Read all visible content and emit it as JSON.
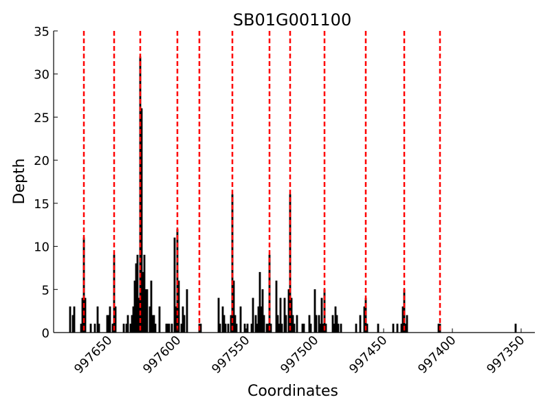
{
  "chart_data": {
    "type": "bar",
    "title": "SB01G001100",
    "xlabel": "Coordinates",
    "ylabel": "Depth",
    "ylim": [
      0,
      35
    ],
    "xlim": [
      997690,
      997340
    ],
    "x_reversed": true,
    "y_ticks": [
      "0",
      "5",
      "10",
      "15",
      "20",
      "25",
      "30",
      "35"
    ],
    "y_tick_values": [
      0,
      5,
      10,
      15,
      20,
      25,
      30,
      35
    ],
    "x_ticks": [
      "997650",
      "997600",
      "997550",
      "997500",
      "997450",
      "997400",
      "997350"
    ],
    "x_tick_values": [
      997650,
      997600,
      997550,
      997500,
      997450,
      997400,
      997350
    ],
    "bar_color": "#000000",
    "line_color": "#ff0000",
    "grid": false,
    "vlines": [
      997668,
      997646,
      997627,
      997600,
      997584,
      997560,
      997533,
      997518,
      997493,
      997463,
      997435,
      997409
    ],
    "bars": [
      {
        "x": 997678,
        "y": 3
      },
      {
        "x": 997676,
        "y": 2
      },
      {
        "x": 997675,
        "y": 3
      },
      {
        "x": 997670,
        "y": 1
      },
      {
        "x": 997669,
        "y": 4
      },
      {
        "x": 997668,
        "y": 11
      },
      {
        "x": 997667,
        "y": 4
      },
      {
        "x": 997663,
        "y": 1
      },
      {
        "x": 997660,
        "y": 1
      },
      {
        "x": 997658,
        "y": 3
      },
      {
        "x": 997657,
        "y": 1
      },
      {
        "x": 997651,
        "y": 2
      },
      {
        "x": 997650,
        "y": 2
      },
      {
        "x": 997649,
        "y": 3
      },
      {
        "x": 997647,
        "y": 1
      },
      {
        "x": 997646,
        "y": 9
      },
      {
        "x": 997645,
        "y": 3
      },
      {
        "x": 997639,
        "y": 1
      },
      {
        "x": 997637,
        "y": 1
      },
      {
        "x": 997636,
        "y": 2
      },
      {
        "x": 997634,
        "y": 1
      },
      {
        "x": 997633,
        "y": 2
      },
      {
        "x": 997632,
        "y": 3
      },
      {
        "x": 997631,
        "y": 6
      },
      {
        "x": 997630,
        "y": 8
      },
      {
        "x": 997629,
        "y": 9
      },
      {
        "x": 997628,
        "y": 4
      },
      {
        "x": 997627,
        "y": 32
      },
      {
        "x": 997626,
        "y": 26
      },
      {
        "x": 997625,
        "y": 7
      },
      {
        "x": 997624,
        "y": 9
      },
      {
        "x": 997623,
        "y": 5
      },
      {
        "x": 997622,
        "y": 5
      },
      {
        "x": 997620,
        "y": 3
      },
      {
        "x": 997619,
        "y": 6
      },
      {
        "x": 997618,
        "y": 2
      },
      {
        "x": 997617,
        "y": 2
      },
      {
        "x": 997616,
        "y": 1
      },
      {
        "x": 997613,
        "y": 3
      },
      {
        "x": 997608,
        "y": 1
      },
      {
        "x": 997607,
        "y": 1
      },
      {
        "x": 997606,
        "y": 1
      },
      {
        "x": 997604,
        "y": 1
      },
      {
        "x": 997602,
        "y": 11
      },
      {
        "x": 997601,
        "y": 3
      },
      {
        "x": 997600,
        "y": 12
      },
      {
        "x": 997599,
        "y": 6
      },
      {
        "x": 997597,
        "y": 1
      },
      {
        "x": 997596,
        "y": 3
      },
      {
        "x": 997595,
        "y": 2
      },
      {
        "x": 997593,
        "y": 5
      },
      {
        "x": 997584,
        "y": 1
      },
      {
        "x": 997583,
        "y": 1
      },
      {
        "x": 997570,
        "y": 4
      },
      {
        "x": 997569,
        "y": 1
      },
      {
        "x": 997567,
        "y": 3
      },
      {
        "x": 997566,
        "y": 2
      },
      {
        "x": 997565,
        "y": 1
      },
      {
        "x": 997563,
        "y": 1
      },
      {
        "x": 997561,
        "y": 2
      },
      {
        "x": 997560,
        "y": 16
      },
      {
        "x": 997559,
        "y": 6
      },
      {
        "x": 997558,
        "y": 2
      },
      {
        "x": 997557,
        "y": 1
      },
      {
        "x": 997554,
        "y": 3
      },
      {
        "x": 997551,
        "y": 1
      },
      {
        "x": 997549,
        "y": 1
      },
      {
        "x": 997546,
        "y": 1
      },
      {
        "x": 997545,
        "y": 4
      },
      {
        "x": 997543,
        "y": 2
      },
      {
        "x": 997542,
        "y": 1
      },
      {
        "x": 997541,
        "y": 3
      },
      {
        "x": 997540,
        "y": 7
      },
      {
        "x": 997539,
        "y": 3
      },
      {
        "x": 997538,
        "y": 5
      },
      {
        "x": 997537,
        "y": 2
      },
      {
        "x": 997535,
        "y": 1
      },
      {
        "x": 997534,
        "y": 1
      },
      {
        "x": 997533,
        "y": 9
      },
      {
        "x": 997532,
        "y": 1
      },
      {
        "x": 997528,
        "y": 6
      },
      {
        "x": 997527,
        "y": 2
      },
      {
        "x": 997526,
        "y": 1
      },
      {
        "x": 997525,
        "y": 4
      },
      {
        "x": 997524,
        "y": 1
      },
      {
        "x": 997522,
        "y": 4
      },
      {
        "x": 997521,
        "y": 2
      },
      {
        "x": 997519,
        "y": 5
      },
      {
        "x": 997518,
        "y": 16
      },
      {
        "x": 997517,
        "y": 4
      },
      {
        "x": 997516,
        "y": 2
      },
      {
        "x": 997515,
        "y": 1
      },
      {
        "x": 997513,
        "y": 2
      },
      {
        "x": 997509,
        "y": 1
      },
      {
        "x": 997508,
        "y": 1
      },
      {
        "x": 997504,
        "y": 2
      },
      {
        "x": 997503,
        "y": 1
      },
      {
        "x": 997500,
        "y": 5
      },
      {
        "x": 997499,
        "y": 2
      },
      {
        "x": 997497,
        "y": 2
      },
      {
        "x": 997496,
        "y": 1
      },
      {
        "x": 997495,
        "y": 4
      },
      {
        "x": 997494,
        "y": 1
      },
      {
        "x": 997493,
        "y": 5
      },
      {
        "x": 997492,
        "y": 1
      },
      {
        "x": 997487,
        "y": 2
      },
      {
        "x": 997486,
        "y": 1
      },
      {
        "x": 997485,
        "y": 3
      },
      {
        "x": 997484,
        "y": 2
      },
      {
        "x": 997483,
        "y": 1
      },
      {
        "x": 997481,
        "y": 1
      },
      {
        "x": 997470,
        "y": 1
      },
      {
        "x": 997467,
        "y": 2
      },
      {
        "x": 997464,
        "y": 3
      },
      {
        "x": 997463,
        "y": 4
      },
      {
        "x": 997462,
        "y": 1
      },
      {
        "x": 997454,
        "y": 1
      },
      {
        "x": 997443,
        "y": 1
      },
      {
        "x": 997440,
        "y": 1
      },
      {
        "x": 997437,
        "y": 1
      },
      {
        "x": 997436,
        "y": 3
      },
      {
        "x": 997435,
        "y": 5
      },
      {
        "x": 997434,
        "y": 1
      },
      {
        "x": 997433,
        "y": 2
      },
      {
        "x": 997410,
        "y": 1
      },
      {
        "x": 997409,
        "y": 1
      },
      {
        "x": 997354,
        "y": 1
      }
    ]
  }
}
